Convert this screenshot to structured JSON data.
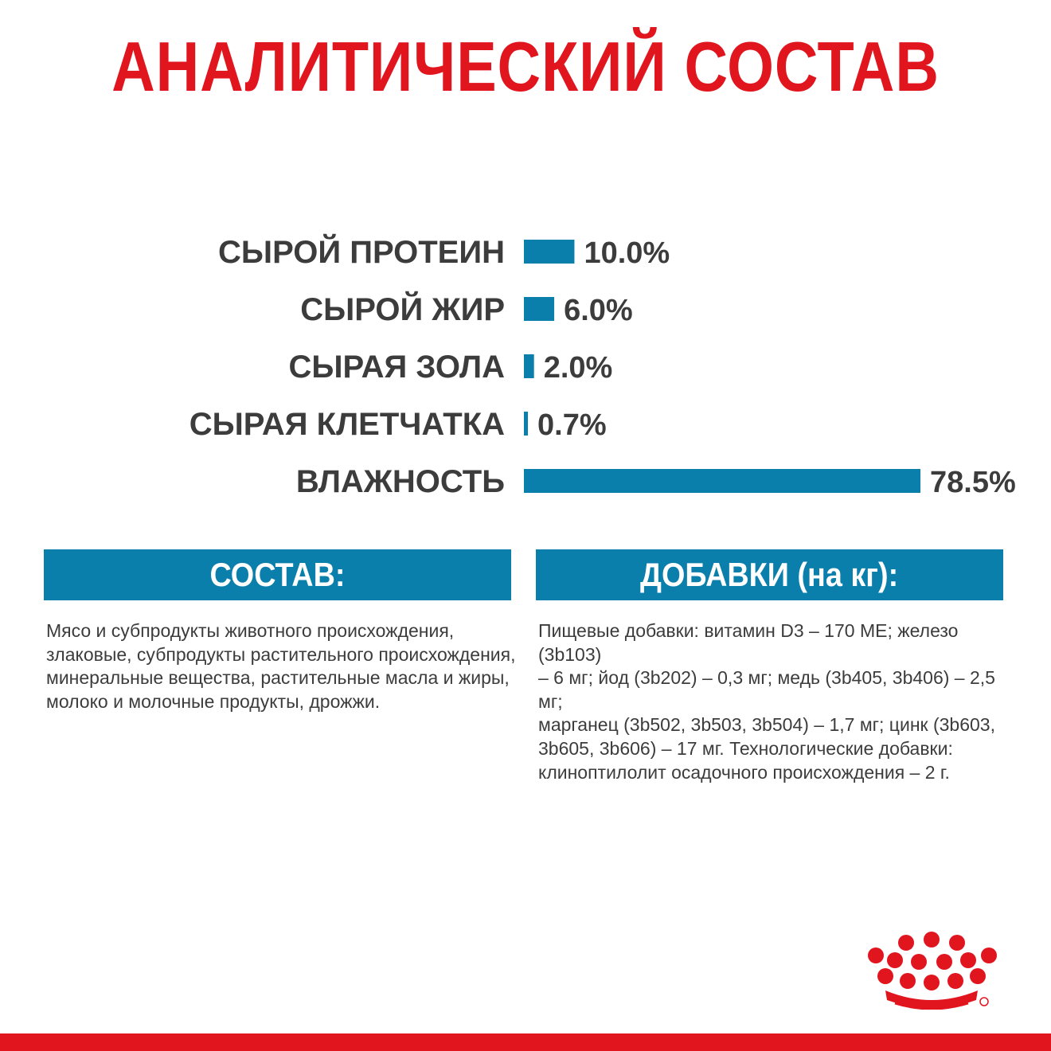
{
  "title": "АНАЛИТИЧЕСКИЙ СОСТАВ",
  "chart_data": {
    "type": "bar",
    "orientation": "horizontal",
    "categories": [
      "СЫРОЙ ПРОТЕИН",
      "СЫРОЙ ЖИР",
      "СЫРАЯ ЗОЛА",
      "СЫРАЯ КЛЕТЧАТКА",
      "ВЛАЖНОСТЬ"
    ],
    "values": [
      10.0,
      6.0,
      2.0,
      0.7,
      78.5
    ],
    "value_labels": [
      "10.0%",
      "6.0%",
      "2.0%",
      "0.7%",
      "78.5%"
    ],
    "unit": "%",
    "xlim": [
      0,
      78.5
    ],
    "grid": false,
    "bar_color": "#0a7fab"
  },
  "sections": [
    {
      "heading": "СОСТАВ:",
      "lines": [
        "Мясо и субпродукты животного происхождения,",
        "злаковые, субпродукты растительного происхождения,",
        "минеральные вещества, растительные масла и жиры,",
        "молоко и молочные продукты, дрожжи."
      ]
    },
    {
      "heading": "ДОБАВКИ (на кг):",
      "lines": [
        "Пищевые добавки: витамин D3 – 170 МЕ; железо (3b103)",
        "– 6 мг; йод (3b202) – 0,3 мг; медь (3b405, 3b406) – 2,5 мг;",
        "марганец (3b502, 3b503, 3b504) – 1,7 мг; цинк (3b603,",
        "3b605, 3b606) – 17 мг. Технологические добавки:",
        "клиноптилолит осадочного происхождения – 2 г."
      ]
    }
  ],
  "colors": {
    "title_red": "#e1151e",
    "accent_blue": "#0a7fab",
    "text_gray": "#3c3c3c"
  },
  "logo_icon": "royal-canin-crown-icon"
}
